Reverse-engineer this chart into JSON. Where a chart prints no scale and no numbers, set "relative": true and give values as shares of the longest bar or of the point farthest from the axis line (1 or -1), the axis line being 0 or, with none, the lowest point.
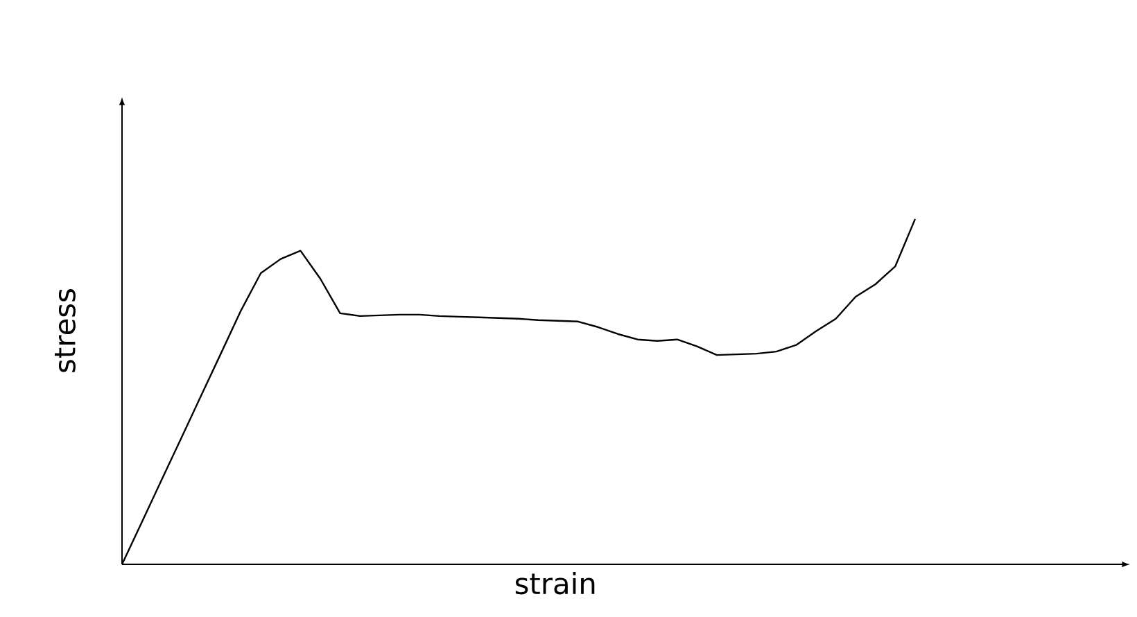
{
  "chart_data": {
    "type": "line",
    "relative": true,
    "xlabel": "strain",
    "ylabel": "stress",
    "categories": [
      null,
      null,
      null,
      null,
      null,
      null,
      null,
      null,
      null,
      null,
      null,
      null,
      null,
      null,
      null,
      null,
      null,
      null,
      null,
      null,
      null,
      null,
      null,
      null,
      null,
      null,
      null,
      null,
      null,
      null,
      null,
      null,
      null,
      null,
      null,
      null,
      null,
      null,
      null,
      null,
      null
    ],
    "series": [
      {
        "color": "#000000",
        "values": [
          0,
          0.122,
          0.245,
          0.367,
          0.49,
          0.612,
          0.735,
          0.843,
          0.884,
          0.908,
          0.827,
          0.727,
          0.719,
          0.721,
          0.723,
          0.723,
          0.719,
          0.717,
          0.715,
          0.713,
          0.711,
          0.707,
          0.705,
          0.703,
          0.687,
          0.667,
          0.651,
          0.647,
          0.651,
          0.631,
          0.606,
          0.608,
          0.61,
          0.616,
          0.635,
          0.675,
          0.711,
          0.775,
          0.811,
          0.863,
          1
        ]
      }
    ]
  }
}
